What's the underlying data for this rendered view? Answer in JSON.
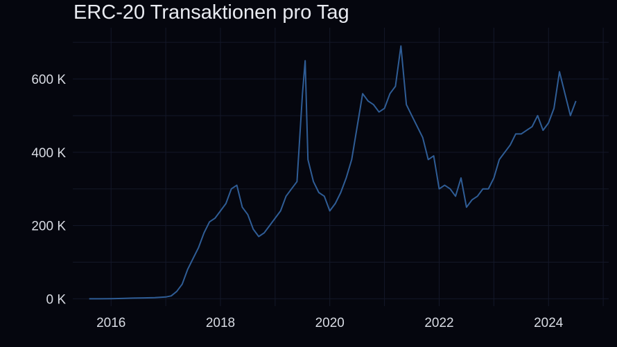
{
  "chart_data": {
    "type": "line",
    "title": "ERC-20 Transaktionen pro Tag",
    "xlabel": "",
    "ylabel": "",
    "xlim": [
      2015.3,
      2025.1
    ],
    "ylim": [
      -20000,
      740000
    ],
    "x_ticks": [
      {
        "value": 2016,
        "label": "2016"
      },
      {
        "value": 2018,
        "label": "2018"
      },
      {
        "value": 2020,
        "label": "2020"
      },
      {
        "value": 2022,
        "label": "2022"
      },
      {
        "value": 2024,
        "label": "2024"
      }
    ],
    "y_ticks": [
      {
        "value": 0,
        "label": "0 K"
      },
      {
        "value": 200000,
        "label": "200 K"
      },
      {
        "value": 400000,
        "label": "400 K"
      },
      {
        "value": 600000,
        "label": "600 K"
      }
    ],
    "grid": true,
    "line_color": "#2f5d96",
    "series": [
      {
        "x": [
          2015.6,
          2015.8,
          2016.0,
          2016.2,
          2016.4,
          2016.6,
          2016.8,
          2017.0,
          2017.1,
          2017.2,
          2017.3,
          2017.4,
          2017.5,
          2017.6,
          2017.7,
          2017.8,
          2017.9,
          2018.0,
          2018.1,
          2018.2,
          2018.3,
          2018.4,
          2018.5,
          2018.6,
          2018.7,
          2018.8,
          2018.9,
          2019.0,
          2019.1,
          2019.2,
          2019.3,
          2019.4,
          2019.5,
          2019.55,
          2019.6,
          2019.7,
          2019.8,
          2019.9,
          2020.0,
          2020.1,
          2020.2,
          2020.3,
          2020.4,
          2020.5,
          2020.6,
          2020.7,
          2020.8,
          2020.9,
          2021.0,
          2021.1,
          2021.2,
          2021.3,
          2021.4,
          2021.5,
          2021.6,
          2021.7,
          2021.8,
          2021.9,
          2022.0,
          2022.1,
          2022.2,
          2022.3,
          2022.4,
          2022.5,
          2022.6,
          2022.7,
          2022.8,
          2022.9,
          2023.0,
          2023.1,
          2023.2,
          2023.3,
          2023.4,
          2023.5,
          2023.6,
          2023.7,
          2023.8,
          2023.9,
          2024.0,
          2024.1,
          2024.2,
          2024.3,
          2024.4,
          2024.5
        ],
        "y": [
          0,
          0,
          500,
          1000,
          2000,
          2500,
          3000,
          5000,
          8000,
          20000,
          40000,
          80000,
          110000,
          140000,
          180000,
          210000,
          220000,
          240000,
          260000,
          300000,
          310000,
          250000,
          230000,
          190000,
          170000,
          180000,
          200000,
          220000,
          240000,
          280000,
          300000,
          320000,
          560000,
          650000,
          380000,
          320000,
          290000,
          280000,
          240000,
          260000,
          290000,
          330000,
          380000,
          470000,
          560000,
          540000,
          530000,
          510000,
          520000,
          560000,
          580000,
          690000,
          530000,
          500000,
          470000,
          440000,
          380000,
          390000,
          300000,
          310000,
          300000,
          280000,
          330000,
          250000,
          270000,
          280000,
          300000,
          300000,
          330000,
          380000,
          400000,
          420000,
          450000,
          450000,
          460000,
          470000,
          500000,
          460000,
          480000,
          520000,
          620000,
          560000,
          500000,
          540000
        ]
      }
    ]
  }
}
